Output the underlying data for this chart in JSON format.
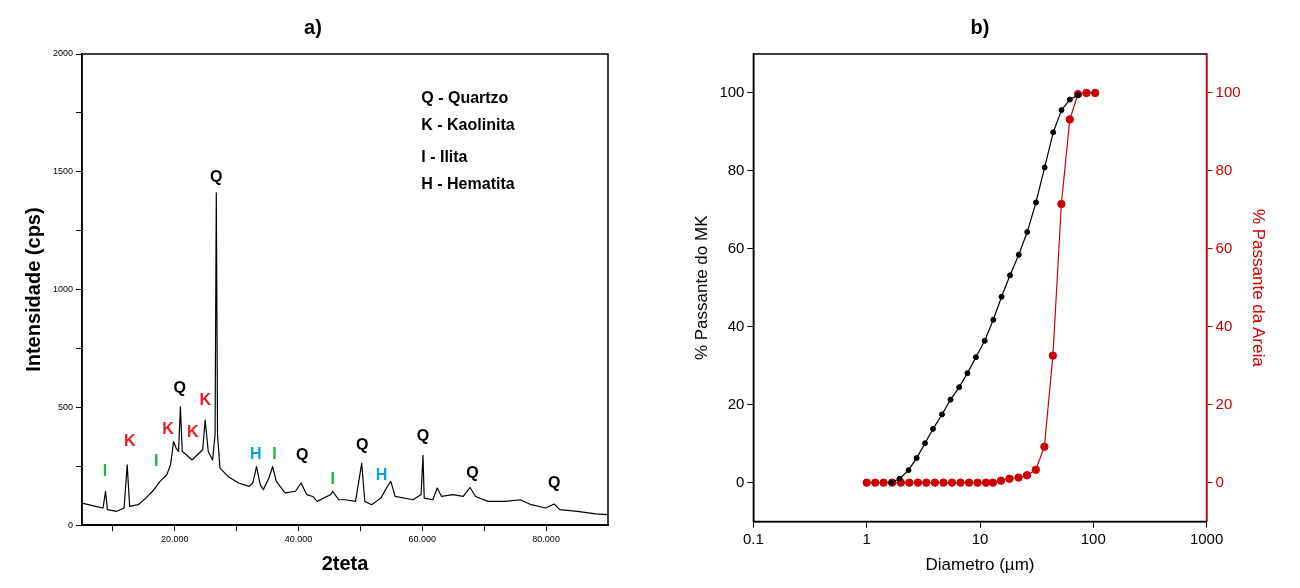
{
  "chart_data": [
    {
      "type": "line",
      "title": "a)",
      "xlabel": "2teta",
      "ylabel": "Intensidade (cps)",
      "color": "#000000",
      "marker": "none",
      "grid": false,
      "legend": false,
      "x": [
        5,
        7.2,
        8.4,
        8.8,
        9.1,
        10.6,
        11.8,
        12.3,
        12.7,
        14.1,
        15.3,
        16.4,
        17.6,
        18.7,
        19.3,
        19.8,
        20.2,
        20.6,
        20.9,
        21.2,
        21.9,
        22.8,
        23.6,
        24.5,
        24.9,
        25.4,
        26.1,
        26.5,
        26.7,
        26.9,
        27.3,
        28.6,
        30.3,
        32,
        32.6,
        33.2,
        33.8,
        34.3,
        35.2,
        35.8,
        36.4,
        37.8,
        39.5,
        40.4,
        41.3,
        42.3,
        43,
        45.2,
        45.5,
        46.5,
        47.5,
        49.2,
        50.2,
        50.7,
        51.8,
        53.3,
        54.2,
        54.9,
        55.6,
        58.5,
        59.8,
        60.1,
        60.3,
        61.7,
        62.4,
        63.1,
        64.9,
        66.6,
        67.7,
        68.6,
        70.6,
        73.5,
        75.8,
        77.6,
        79.9,
        81.3,
        82.2,
        85.1,
        88,
        90
      ],
      "values": [
        94,
        80,
        73,
        144,
        66,
        59,
        73,
        256,
        80,
        87,
        115,
        144,
        186,
        214,
        256,
        355,
        327,
        313,
        503,
        313,
        298,
        277,
        298,
        320,
        446,
        313,
        277,
        383,
        1411,
        383,
        242,
        207,
        179,
        165,
        179,
        249,
        172,
        151,
        200,
        249,
        186,
        137,
        144,
        179,
        130,
        122,
        101,
        130,
        144,
        108,
        108,
        101,
        263,
        101,
        87,
        115,
        158,
        186,
        122,
        108,
        130,
        296,
        115,
        108,
        158,
        122,
        130,
        122,
        160,
        122,
        101,
        101,
        108,
        87,
        73,
        90,
        66,
        59,
        48,
        45
      ],
      "xlim": [
        5,
        90
      ],
      "xticks": [
        {
          "value": 10,
          "label": null
        },
        {
          "value": 20,
          "label": "20.000"
        },
        {
          "value": 30,
          "label": null
        },
        {
          "value": 40,
          "label": "40.000"
        },
        {
          "value": 50,
          "label": null
        },
        {
          "value": 60,
          "label": "60.000"
        },
        {
          "value": 70,
          "label": null
        },
        {
          "value": 80,
          "label": "80.000"
        }
      ],
      "ylim": [
        0,
        2000
      ],
      "yticks": [
        0,
        {
          "value": 250,
          "label": null
        },
        500,
        {
          "value": 750,
          "label": null
        },
        1000,
        {
          "value": 1250,
          "label": null
        },
        1500,
        {
          "value": 1750,
          "label": null
        },
        2000
      ],
      "annotations": [
        "Q - Quartzo",
        "K - Kaolinita",
        "I - Ilita",
        "H - Hematita",
        "I",
        "K",
        "I",
        "K",
        "Q",
        "K",
        "K",
        "Q",
        "H",
        "I",
        "Q",
        "I",
        "Q",
        "H",
        "Q",
        "Q",
        "Q"
      ]
    },
    {
      "type": "line",
      "title": "b)",
      "xlabel": "Diametro (µm)",
      "ylabel": "% Passante do MK",
      "y2label": "% Passante da Areia",
      "log": "x",
      "marker": "circle",
      "grid": false,
      "legend": false,
      "xlim": [
        0.1,
        1000
      ],
      "xticks": [
        0.1,
        1,
        10,
        100,
        1000
      ],
      "ylim": [
        -10,
        110
      ],
      "yticks": [
        0,
        20,
        40,
        60,
        80,
        100
      ],
      "y2lim": [
        -10,
        110
      ],
      "y2ticks": [
        0,
        20,
        40,
        60,
        80,
        100
      ],
      "series": [
        {
          "color": "#000000",
          "x": [
            1.64,
            1.95,
            2.34,
            2.76,
            3.27,
            3.85,
            4.62,
            5.49,
            6.55,
            7.75,
            9.2,
            11,
            13.1,
            15.5,
            18.4,
            22,
            26.1,
            31.2,
            37.2,
            44.3,
            52.4,
            62.1,
            73.5
          ],
          "values": [
            0,
            1,
            3.2,
            6.3,
            10.1,
            13.8,
            17.5,
            21.3,
            24.5,
            28.1,
            32.2,
            36.4,
            41.8,
            47.7,
            53.2,
            58.5,
            64.3,
            71.9,
            80.9,
            89.9,
            95.6,
            98.3,
            99.5
          ]
        },
        {
          "color": "#cc0000",
          "axis": "y2",
          "x": [
            1,
            1.19,
            1.41,
            1.68,
            2,
            2.38,
            2.83,
            3.36,
            4,
            4.76,
            5.66,
            6.73,
            8,
            9.51,
            11.3,
            13,
            15.3,
            18.2,
            21.9,
            26,
            31.1,
            37,
            44,
            52.3,
            62,
            73.3,
            87,
            103.9
          ],
          "values": [
            0,
            0,
            0,
            0,
            0,
            0,
            0,
            0,
            0,
            0,
            0,
            0,
            0,
            0,
            0,
            0,
            0.5,
            1,
            1.3,
            1.9,
            3.3,
            9.2,
            32.6,
            71.5,
            93.2,
            99.7,
            100,
            100
          ]
        }
      ]
    }
  ]
}
